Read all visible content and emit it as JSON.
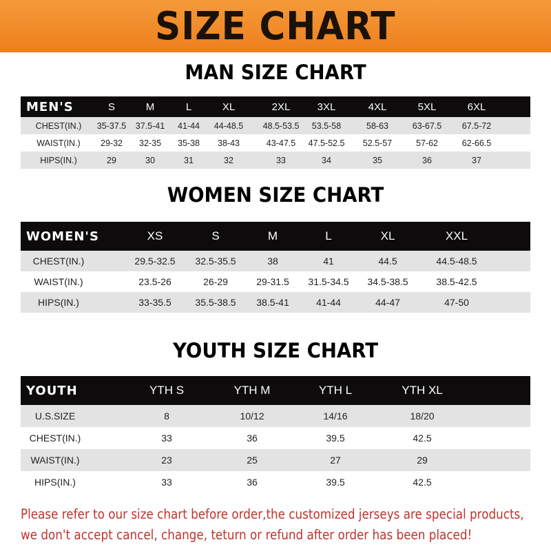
{
  "banner_title": "SIZE CHART",
  "tables": [
    {
      "title": "MAN SIZE CHART",
      "header": [
        "MEN'S",
        "S",
        "M",
        "L",
        "XL",
        "2XL",
        "3XL",
        "4XL",
        "5XL",
        "6XL"
      ],
      "rows": [
        [
          "CHEST(IN.)",
          "35-37.5",
          "37.5-41",
          "41-44",
          "44-48.5",
          "48.5-53.5",
          "53.5-58",
          "58-63",
          "63-67.5",
          "67.5-72"
        ],
        [
          "WAIST(IN.)",
          "29-32",
          "32-35",
          "35-38",
          "38-43",
          "43-47.5",
          "47.5-52.5",
          "52.5-57",
          "57-62",
          "62-66.5"
        ],
        [
          "HIPS(IN.)",
          "29",
          "30",
          "31",
          "32",
          "33",
          "34",
          "35",
          "36",
          "37"
        ]
      ]
    },
    {
      "title": "WOMEN SIZE CHART",
      "header": [
        "WOMEN'S",
        "XS",
        "S",
        "M",
        "L",
        "XL",
        "XXL"
      ],
      "rows": [
        [
          "CHEST(IN.)",
          "29.5-32.5",
          "32.5-35.5",
          "38",
          "41",
          "44.5",
          "44.5-48.5"
        ],
        [
          "WAIST(IN.)",
          "23.5-26",
          "26-29",
          "29-31.5",
          "31.5-34.5",
          "34.5-38.5",
          "38.5-42.5"
        ],
        [
          "HIPS(IN.)",
          "33-35.5",
          "35.5-38.5",
          "38.5-41",
          "41-44",
          "44-47",
          "47-50"
        ]
      ]
    },
    {
      "title": "YOUTH SIZE CHART",
      "header": [
        "YOUTH",
        "YTH S",
        "YTH M",
        "YTH L",
        "YTH XL"
      ],
      "rows": [
        [
          "U.S.SIZE",
          "8",
          "10/12",
          "14/16",
          "18/20"
        ],
        [
          "CHEST(IN.)",
          "33",
          "36",
          "39.5",
          "42.5"
        ],
        [
          "WAIST(IN.)",
          "23",
          "25",
          "27",
          "29"
        ],
        [
          "HIPS(IN.)",
          "33",
          "36",
          "39.5",
          "42.5"
        ]
      ]
    }
  ],
  "footer": {
    "line1": "Please refer to our size chart before order,the customized jerseys are special products,",
    "line2": "we don't accept cancel, change, teturn or refund after order has been placed!"
  },
  "colors": {
    "banner": "#ee8a24",
    "header_bg": "#0d0b0b",
    "row_alt": "#e3e3e3",
    "notice": "#c0322b"
  }
}
